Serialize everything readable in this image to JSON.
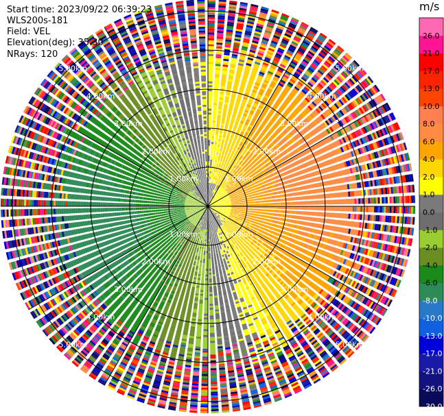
{
  "info": {
    "start_time": "Start time: 2023/09/22 06:39:23",
    "instrument": "WLS200s-181",
    "field": "Field: VEL",
    "elevation": "Elevation(deg): 35.30",
    "nrays": "NRays: 120"
  },
  "colorbar": {
    "unit": "m/s",
    "colors": [
      "#0a0a5a",
      "#121280",
      "#1a1aa8",
      "#0000d8",
      "#1060e0",
      "#2a78c8",
      "#2e8b57",
      "#1a8a1a",
      "#6b8e23",
      "#9acd32",
      "#6e6e6e",
      "#7a7a7a",
      "#ffff00",
      "#ffd700",
      "#ffa500",
      "#ff8c42",
      "#ff7f50",
      "#ff4500",
      "#ff2400",
      "#ff0000",
      "#ff1493",
      "#ff69b4"
    ],
    "ticks": [
      "-30.0",
      "-26.0",
      "-21.0",
      "-17.0",
      "-13.0",
      "-10.0",
      "-8.0",
      "-6.0",
      "-4.0",
      "-2.0",
      "-1.0",
      "0.0",
      "1.0",
      "2.0",
      "4.0",
      "6.0",
      "8.0",
      "10.0",
      "13.0",
      "17.0",
      "21.0",
      "26.0"
    ]
  },
  "chart_data": {
    "type": "heatmap",
    "projection": "polar-ppi",
    "field": "VEL",
    "units": "m/s",
    "nrays": 120,
    "range_max_km": 5.3,
    "rings_km": [
      1,
      2,
      3,
      4,
      5
    ],
    "ring_labels": [
      "1.00km",
      "2.00km",
      "3.00km",
      "4.00km",
      "5.00km"
    ],
    "vmin": -30,
    "vmax": 30,
    "pattern": {
      "description_free": true,
      "positive_azimuth_deg": 80,
      "negative_azimuth_deg": 260,
      "amplitude_ms": 7,
      "noise_start_km": 3.6
    }
  }
}
